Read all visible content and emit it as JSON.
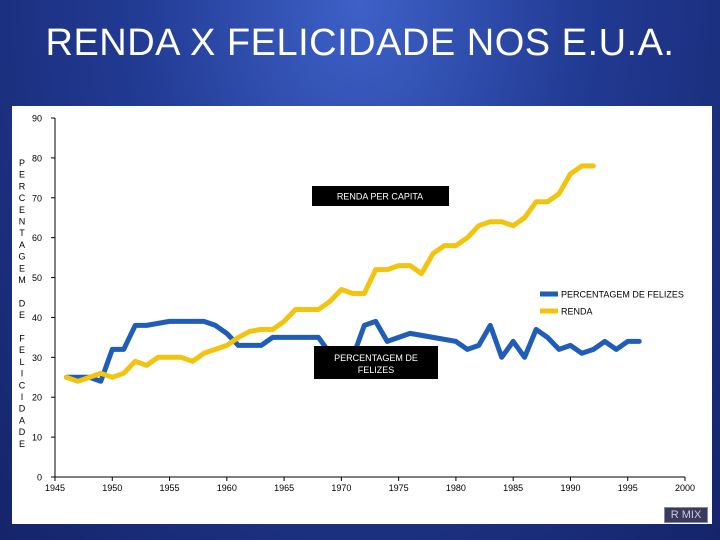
{
  "slide": {
    "title": "RENDA X FELICIDADE NOS E.U.A.",
    "footer_badge": "R MIX"
  },
  "chart_data": {
    "type": "line",
    "title": "RENDA X FELICIDADE NOS E.U.A.",
    "ylabel": "PERCENTAGEM DE FELICIDADE",
    "xlabel": "",
    "xlim": [
      1945,
      2000
    ],
    "ylim": [
      0,
      90
    ],
    "xticks": [
      1945,
      1950,
      1955,
      1960,
      1965,
      1970,
      1975,
      1980,
      1985,
      1990,
      1995,
      2000
    ],
    "yticks": [
      0,
      10,
      20,
      30,
      40,
      50,
      60,
      70,
      80,
      90
    ],
    "grid": false,
    "legend_position": "right",
    "series": [
      {
        "name": "PERCENTAGEM DE FELIZES",
        "color": "#1f5db8",
        "points": [
          [
            1946,
            25
          ],
          [
            1948,
            25
          ],
          [
            1949,
            24
          ],
          [
            1950,
            32
          ],
          [
            1951,
            32
          ],
          [
            1952,
            38
          ],
          [
            1953,
            38
          ],
          [
            1955,
            39
          ],
          [
            1957,
            39
          ],
          [
            1958,
            39
          ],
          [
            1959,
            38
          ],
          [
            1960,
            36
          ],
          [
            1961,
            33
          ],
          [
            1963,
            33
          ],
          [
            1964,
            35
          ],
          [
            1966,
            35
          ],
          [
            1967,
            35
          ],
          [
            1968,
            35
          ],
          [
            1969,
            31
          ],
          [
            1971,
            30
          ],
          [
            1972,
            38
          ],
          [
            1973,
            39
          ],
          [
            1974,
            34
          ],
          [
            1976,
            36
          ],
          [
            1978,
            35
          ],
          [
            1980,
            34
          ],
          [
            1981,
            32
          ],
          [
            1982,
            33
          ],
          [
            1983,
            38
          ],
          [
            1984,
            30
          ],
          [
            1985,
            34
          ],
          [
            1986,
            30
          ],
          [
            1987,
            37
          ],
          [
            1988,
            35
          ],
          [
            1989,
            32
          ],
          [
            1990,
            33
          ],
          [
            1991,
            31
          ],
          [
            1992,
            32
          ],
          [
            1993,
            34
          ],
          [
            1994,
            32
          ],
          [
            1995,
            34
          ],
          [
            1996,
            34
          ]
        ]
      },
      {
        "name": "RENDA",
        "color": "#f2c40f",
        "points": [
          [
            1946,
            25
          ],
          [
            1947,
            24
          ],
          [
            1949,
            26
          ],
          [
            1950,
            25
          ],
          [
            1951,
            26
          ],
          [
            1952,
            29
          ],
          [
            1953,
            28
          ],
          [
            1954,
            30
          ],
          [
            1956,
            30
          ],
          [
            1957,
            29
          ],
          [
            1958,
            31
          ],
          [
            1960,
            33
          ],
          [
            1961,
            35
          ],
          [
            1962,
            36.5
          ],
          [
            1963,
            37
          ],
          [
            1964,
            37
          ],
          [
            1965,
            39
          ],
          [
            1966,
            42
          ],
          [
            1968,
            42
          ],
          [
            1969,
            44
          ],
          [
            1970,
            47
          ],
          [
            1971,
            46
          ],
          [
            1972,
            46
          ],
          [
            1973,
            52
          ],
          [
            1974,
            52
          ],
          [
            1975,
            53
          ],
          [
            1976,
            53
          ],
          [
            1977,
            51
          ],
          [
            1978,
            56
          ],
          [
            1979,
            58
          ],
          [
            1980,
            58
          ],
          [
            1981,
            60
          ],
          [
            1982,
            63
          ],
          [
            1983,
            64
          ],
          [
            1984,
            64
          ],
          [
            1985,
            63
          ],
          [
            1986,
            65
          ],
          [
            1987,
            69
          ],
          [
            1988,
            69
          ],
          [
            1989,
            71
          ],
          [
            1990,
            76
          ],
          [
            1991,
            78
          ],
          [
            1992,
            78
          ]
        ]
      }
    ],
    "annotations": [
      {
        "text": "RENDA   PER   CAPITA"
      },
      {
        "text_line1": "PERCENTAGEM   DE",
        "text_line2": "FELIZES"
      }
    ]
  }
}
